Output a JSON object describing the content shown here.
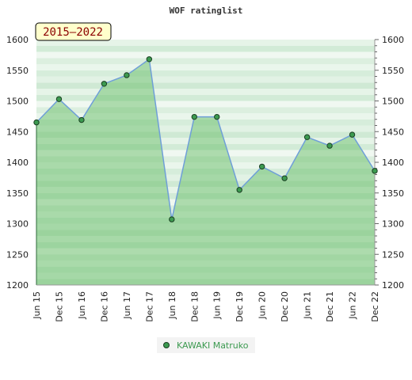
{
  "chart_data": {
    "type": "area",
    "title": "WOF ratinglist",
    "period_label": "2015–2022",
    "categories": [
      "Jun 15",
      "Dec 15",
      "Jun 16",
      "Dec 16",
      "Jun 17",
      "Dec 17",
      "Jun 18",
      "Dec 18",
      "Jun 19",
      "Dec 19",
      "Jun 20",
      "Dec 20",
      "Jun 21",
      "Dec 21",
      "Jun 22",
      "Dec 22"
    ],
    "series": [
      {
        "name": "KAWAKI Matruko",
        "values": [
          1465,
          1503,
          1469,
          1528,
          1542,
          1568,
          1307,
          1474,
          1474,
          1355,
          1393,
          1374,
          1441,
          1427,
          1445,
          1386
        ]
      }
    ],
    "ylim": [
      1200,
      1600
    ],
    "y_ticks": [
      1200,
      1250,
      1300,
      1350,
      1400,
      1450,
      1500,
      1550,
      1600
    ],
    "grid": true,
    "legend_position": "bottom-center",
    "colors": {
      "line": "#6f9fd8",
      "area_fill": "#5cb85c",
      "marker_fill": "#3c9a50",
      "marker_stroke": "#1a3f22",
      "legend_text": "#3c9a50",
      "period_label_bg": "#ffffcc",
      "period_label_text": "#8b0000"
    }
  }
}
